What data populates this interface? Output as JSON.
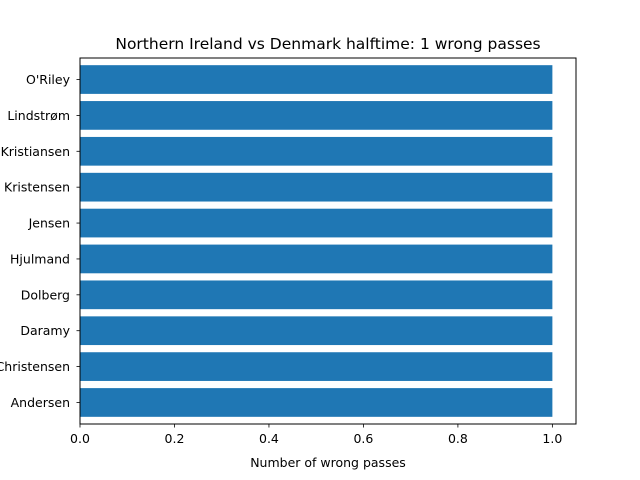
{
  "chart_data": {
    "type": "bar",
    "orientation": "horizontal",
    "title": "Northern Ireland vs Denmark halftime: 1 wrong passes",
    "xlabel": "Number of wrong passes",
    "ylabel": "",
    "categories": [
      "O'Riley",
      "Lindstrøm",
      "Kristiansen",
      "Kristensen",
      "Jensen",
      "Hjulmand",
      "Dolberg",
      "Daramy",
      "Christensen",
      "Andersen"
    ],
    "values": [
      1,
      1,
      1,
      1,
      1,
      1,
      1,
      1,
      1,
      1
    ],
    "xlim": [
      0,
      1.05
    ],
    "xticks": [
      "0.0",
      "0.2",
      "0.4",
      "0.6",
      "0.8",
      "1.0"
    ],
    "grid": false,
    "bar_color": "#1f77b4"
  }
}
